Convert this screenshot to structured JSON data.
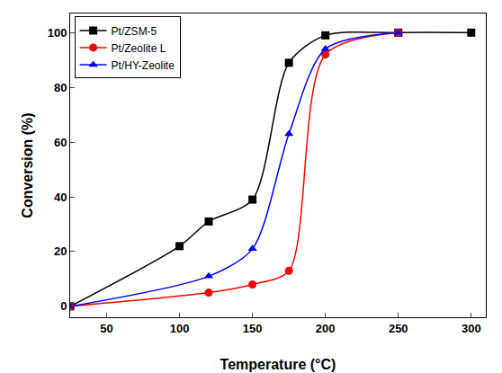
{
  "chart_data": {
    "type": "line",
    "x_label": "Temperature (°C)",
    "y_label": "Conversion (%)",
    "xlim": [
      25,
      310
    ],
    "xticks": [
      50,
      100,
      150,
      200,
      250,
      300
    ],
    "ylim": [
      -4,
      107
    ],
    "yticks": [
      0,
      20,
      40,
      60,
      80,
      100
    ],
    "grid": false,
    "legend": "upper left",
    "series": [
      {
        "name": "Pt/ZSM-5",
        "color": "#000000",
        "marker": "square",
        "x": [
          25,
          100,
          120,
          150,
          175,
          200,
          250,
          300
        ],
        "values": [
          0,
          22,
          31,
          39,
          89,
          99,
          100,
          100
        ]
      },
      {
        "name": "Pt/Zeolite L",
        "color": "#ff0000",
        "marker": "circle",
        "x": [
          25,
          120,
          150,
          175,
          200,
          250
        ],
        "values": [
          0,
          5,
          8,
          13,
          92,
          100
        ]
      },
      {
        "name": "Pt/HY-Zeolite",
        "color": "#0000ff",
        "marker": "triangle-up",
        "x": [
          25,
          120,
          150,
          175,
          200,
          250
        ],
        "values": [
          0,
          11,
          21,
          63,
          94,
          100
        ]
      }
    ]
  }
}
